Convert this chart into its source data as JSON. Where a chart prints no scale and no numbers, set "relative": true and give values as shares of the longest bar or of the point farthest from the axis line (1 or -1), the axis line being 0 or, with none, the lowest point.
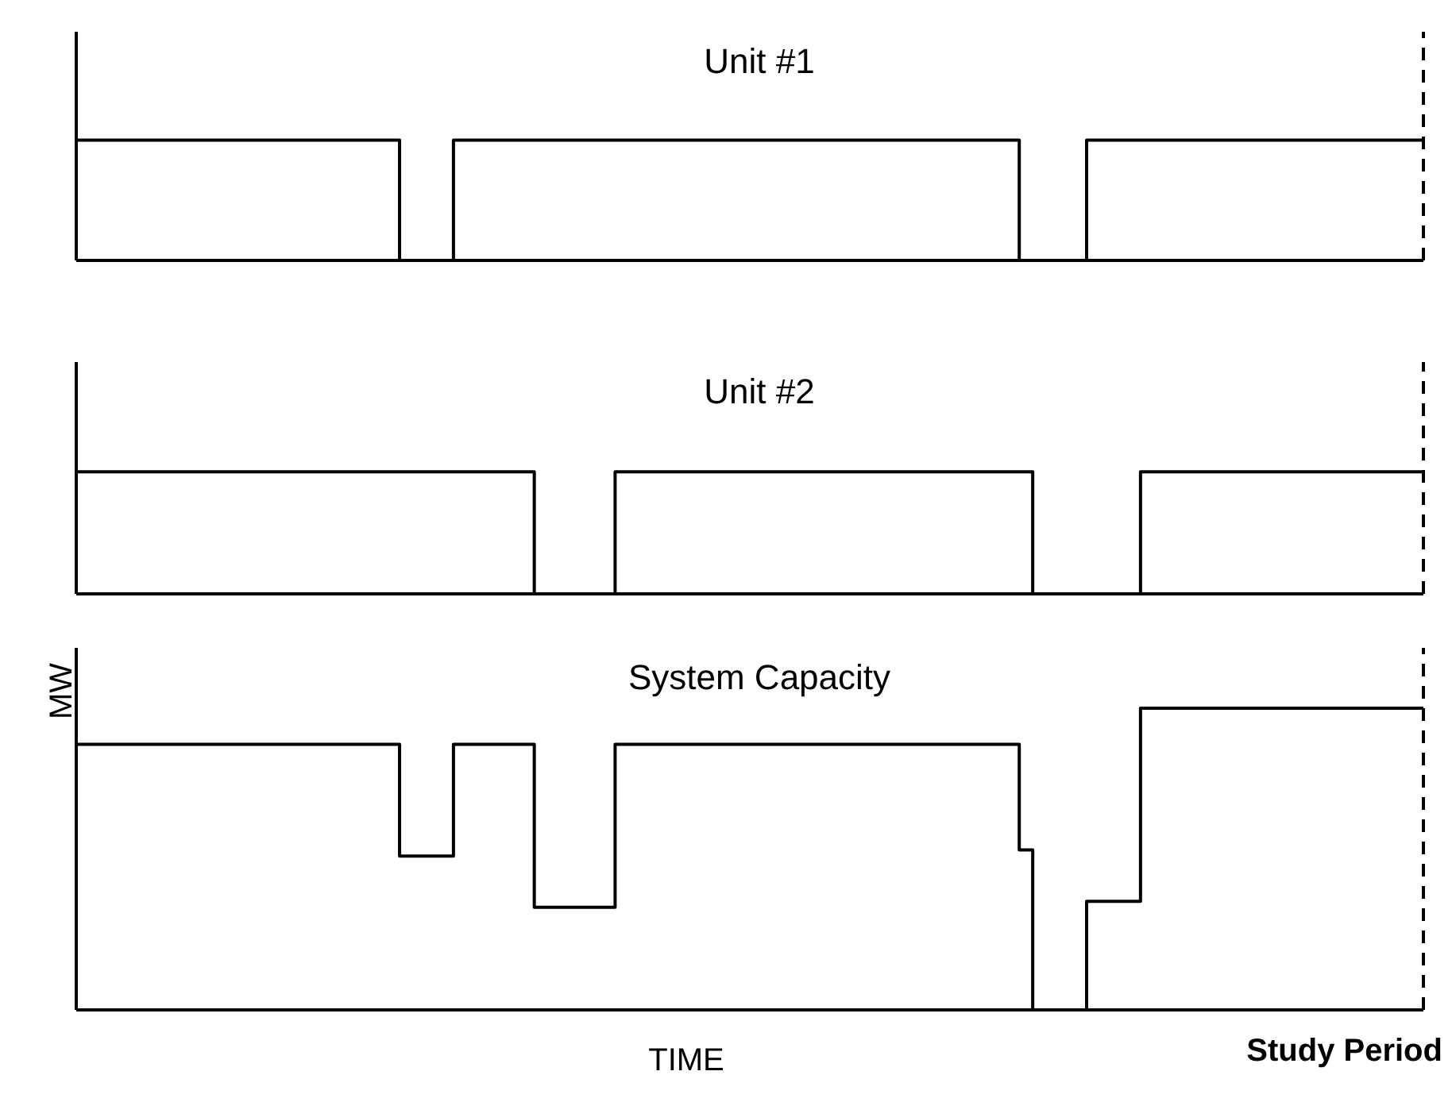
{
  "chart_data": [
    {
      "type": "step",
      "title": "Unit #1",
      "relative": true,
      "categories": [
        null,
        null,
        null,
        null,
        null,
        null,
        null,
        null,
        null,
        null,
        null,
        null,
        null,
        null,
        null,
        null,
        null,
        null,
        null,
        null,
        null,
        null,
        null,
        null,
        null,
        null,
        null,
        null,
        null,
        null,
        null,
        null,
        null,
        null,
        null,
        null,
        null,
        null,
        null,
        null,
        null,
        null,
        null,
        null,
        null,
        null,
        null,
        null,
        null,
        null,
        null,
        null,
        null,
        null,
        null,
        null,
        null,
        null,
        null,
        null,
        null,
        null,
        null,
        null,
        null,
        null,
        null,
        null,
        null,
        null,
        null,
        null,
        null,
        null,
        null,
        null,
        null,
        null,
        null,
        null,
        null,
        null,
        null,
        null,
        null,
        null,
        null,
        null,
        null,
        null,
        null,
        null,
        null,
        null,
        null,
        null,
        null,
        null,
        null,
        null,
        null
      ],
      "series": [
        {
          "color": "#000000",
          "values": [
            1,
            1,
            1,
            1,
            1,
            1,
            1,
            1,
            1,
            1,
            1,
            1,
            1,
            1,
            1,
            1,
            1,
            1,
            1,
            1,
            1,
            1,
            1,
            1,
            0,
            0,
            0,
            0,
            1,
            1,
            1,
            1,
            1,
            1,
            1,
            1,
            1,
            1,
            1,
            1,
            1,
            1,
            1,
            1,
            1,
            1,
            1,
            1,
            1,
            1,
            1,
            1,
            1,
            1,
            1,
            1,
            1,
            1,
            1,
            1,
            1,
            1,
            1,
            1,
            1,
            1,
            1,
            1,
            1,
            1,
            0,
            0,
            0,
            0,
            0,
            1,
            1,
            1,
            1,
            1,
            1,
            1,
            1,
            1,
            1,
            1,
            1,
            1,
            1,
            1,
            1,
            1,
            1,
            1,
            1,
            1,
            1,
            1,
            1,
            1,
            1
          ]
        }
      ]
    },
    {
      "type": "step",
      "title": "Unit #2",
      "relative": true,
      "categories": [
        null,
        null,
        null,
        null,
        null,
        null,
        null,
        null,
        null,
        null,
        null,
        null,
        null,
        null,
        null,
        null,
        null,
        null,
        null,
        null,
        null,
        null,
        null,
        null,
        null,
        null,
        null,
        null,
        null,
        null,
        null,
        null,
        null,
        null,
        null,
        null,
        null,
        null,
        null,
        null,
        null,
        null,
        null,
        null,
        null,
        null,
        null,
        null,
        null,
        null,
        null,
        null,
        null,
        null,
        null,
        null,
        null,
        null,
        null,
        null,
        null,
        null,
        null,
        null,
        null,
        null,
        null,
        null,
        null,
        null,
        null,
        null,
        null,
        null,
        null,
        null,
        null,
        null,
        null,
        null,
        null,
        null,
        null,
        null,
        null,
        null,
        null,
        null,
        null,
        null,
        null,
        null,
        null,
        null,
        null,
        null,
        null,
        null,
        null,
        null,
        null
      ],
      "series": [
        {
          "color": "#000000",
          "values": [
            1,
            1,
            1,
            1,
            1,
            1,
            1,
            1,
            1,
            1,
            1,
            1,
            1,
            1,
            1,
            1,
            1,
            1,
            1,
            1,
            1,
            1,
            1,
            1,
            1,
            1,
            1,
            1,
            1,
            1,
            1,
            1,
            1,
            1,
            0,
            0,
            0,
            0,
            0,
            0,
            1,
            1,
            1,
            1,
            1,
            1,
            1,
            1,
            1,
            1,
            1,
            1,
            1,
            1,
            1,
            1,
            1,
            1,
            1,
            1,
            1,
            1,
            1,
            1,
            1,
            1,
            1,
            1,
            1,
            1,
            1,
            0,
            0,
            0,
            0,
            0,
            0,
            0,
            0,
            1,
            1,
            1,
            1,
            1,
            1,
            1,
            1,
            1,
            1,
            1,
            1,
            1,
            1,
            1,
            1,
            1,
            1,
            1,
            1,
            1,
            1
          ]
        }
      ]
    },
    {
      "type": "step",
      "title": "System Capacity",
      "relative": true,
      "xlabel": "TIME",
      "ylabel": "MW",
      "categories": [
        null,
        null,
        null,
        null,
        null,
        null,
        null,
        null,
        null,
        null,
        null,
        null,
        null,
        null,
        null,
        null,
        null,
        null,
        null,
        null,
        null,
        null,
        null,
        null,
        null,
        null,
        null,
        null,
        null,
        null,
        null,
        null,
        null,
        null,
        null,
        null,
        null,
        null,
        null,
        null,
        null,
        null,
        null,
        null,
        null,
        null,
        null,
        null,
        null,
        null,
        null,
        null,
        null,
        null,
        null,
        null,
        null,
        null,
        null,
        null,
        null,
        null,
        null,
        null,
        null,
        null,
        null,
        null,
        null,
        null,
        null,
        null,
        null,
        null,
        null,
        null,
        null,
        null,
        null,
        null,
        null,
        null,
        null,
        null,
        null,
        null,
        null,
        null,
        null,
        null,
        null,
        null,
        null,
        null,
        null,
        null,
        null,
        null,
        null,
        null,
        null
      ],
      "series": [
        {
          "color": "#000000",
          "values": [
            0.88,
            0.88,
            0.88,
            0.88,
            0.88,
            0.88,
            0.88,
            0.88,
            0.88,
            0.88,
            0.88,
            0.88,
            0.88,
            0.88,
            0.88,
            0.88,
            0.88,
            0.88,
            0.88,
            0.88,
            0.88,
            0.88,
            0.88,
            0.88,
            0.51,
            0.51,
            0.51,
            0.51,
            0.88,
            0.88,
            0.88,
            0.88,
            0.88,
            0.88,
            0.34,
            0.34,
            0.34,
            0.34,
            0.34,
            0.34,
            0.88,
            0.88,
            0.88,
            0.88,
            0.88,
            0.88,
            0.88,
            0.88,
            0.88,
            0.88,
            0.88,
            0.88,
            0.88,
            0.88,
            0.88,
            0.88,
            0.88,
            0.88,
            0.88,
            0.88,
            0.88,
            0.88,
            0.88,
            0.88,
            0.88,
            0.88,
            0.88,
            0.88,
            0.88,
            0.88,
            0.53,
            0,
            0,
            0,
            0,
            0.36,
            0.36,
            0.36,
            0.36,
            1,
            1,
            1,
            1,
            1,
            1,
            1,
            1,
            1,
            1,
            1,
            1,
            1,
            1,
            1,
            1,
            1,
            1,
            1,
            1,
            1,
            1
          ]
        }
      ],
      "annotations": [
        "Study Period"
      ]
    }
  ]
}
